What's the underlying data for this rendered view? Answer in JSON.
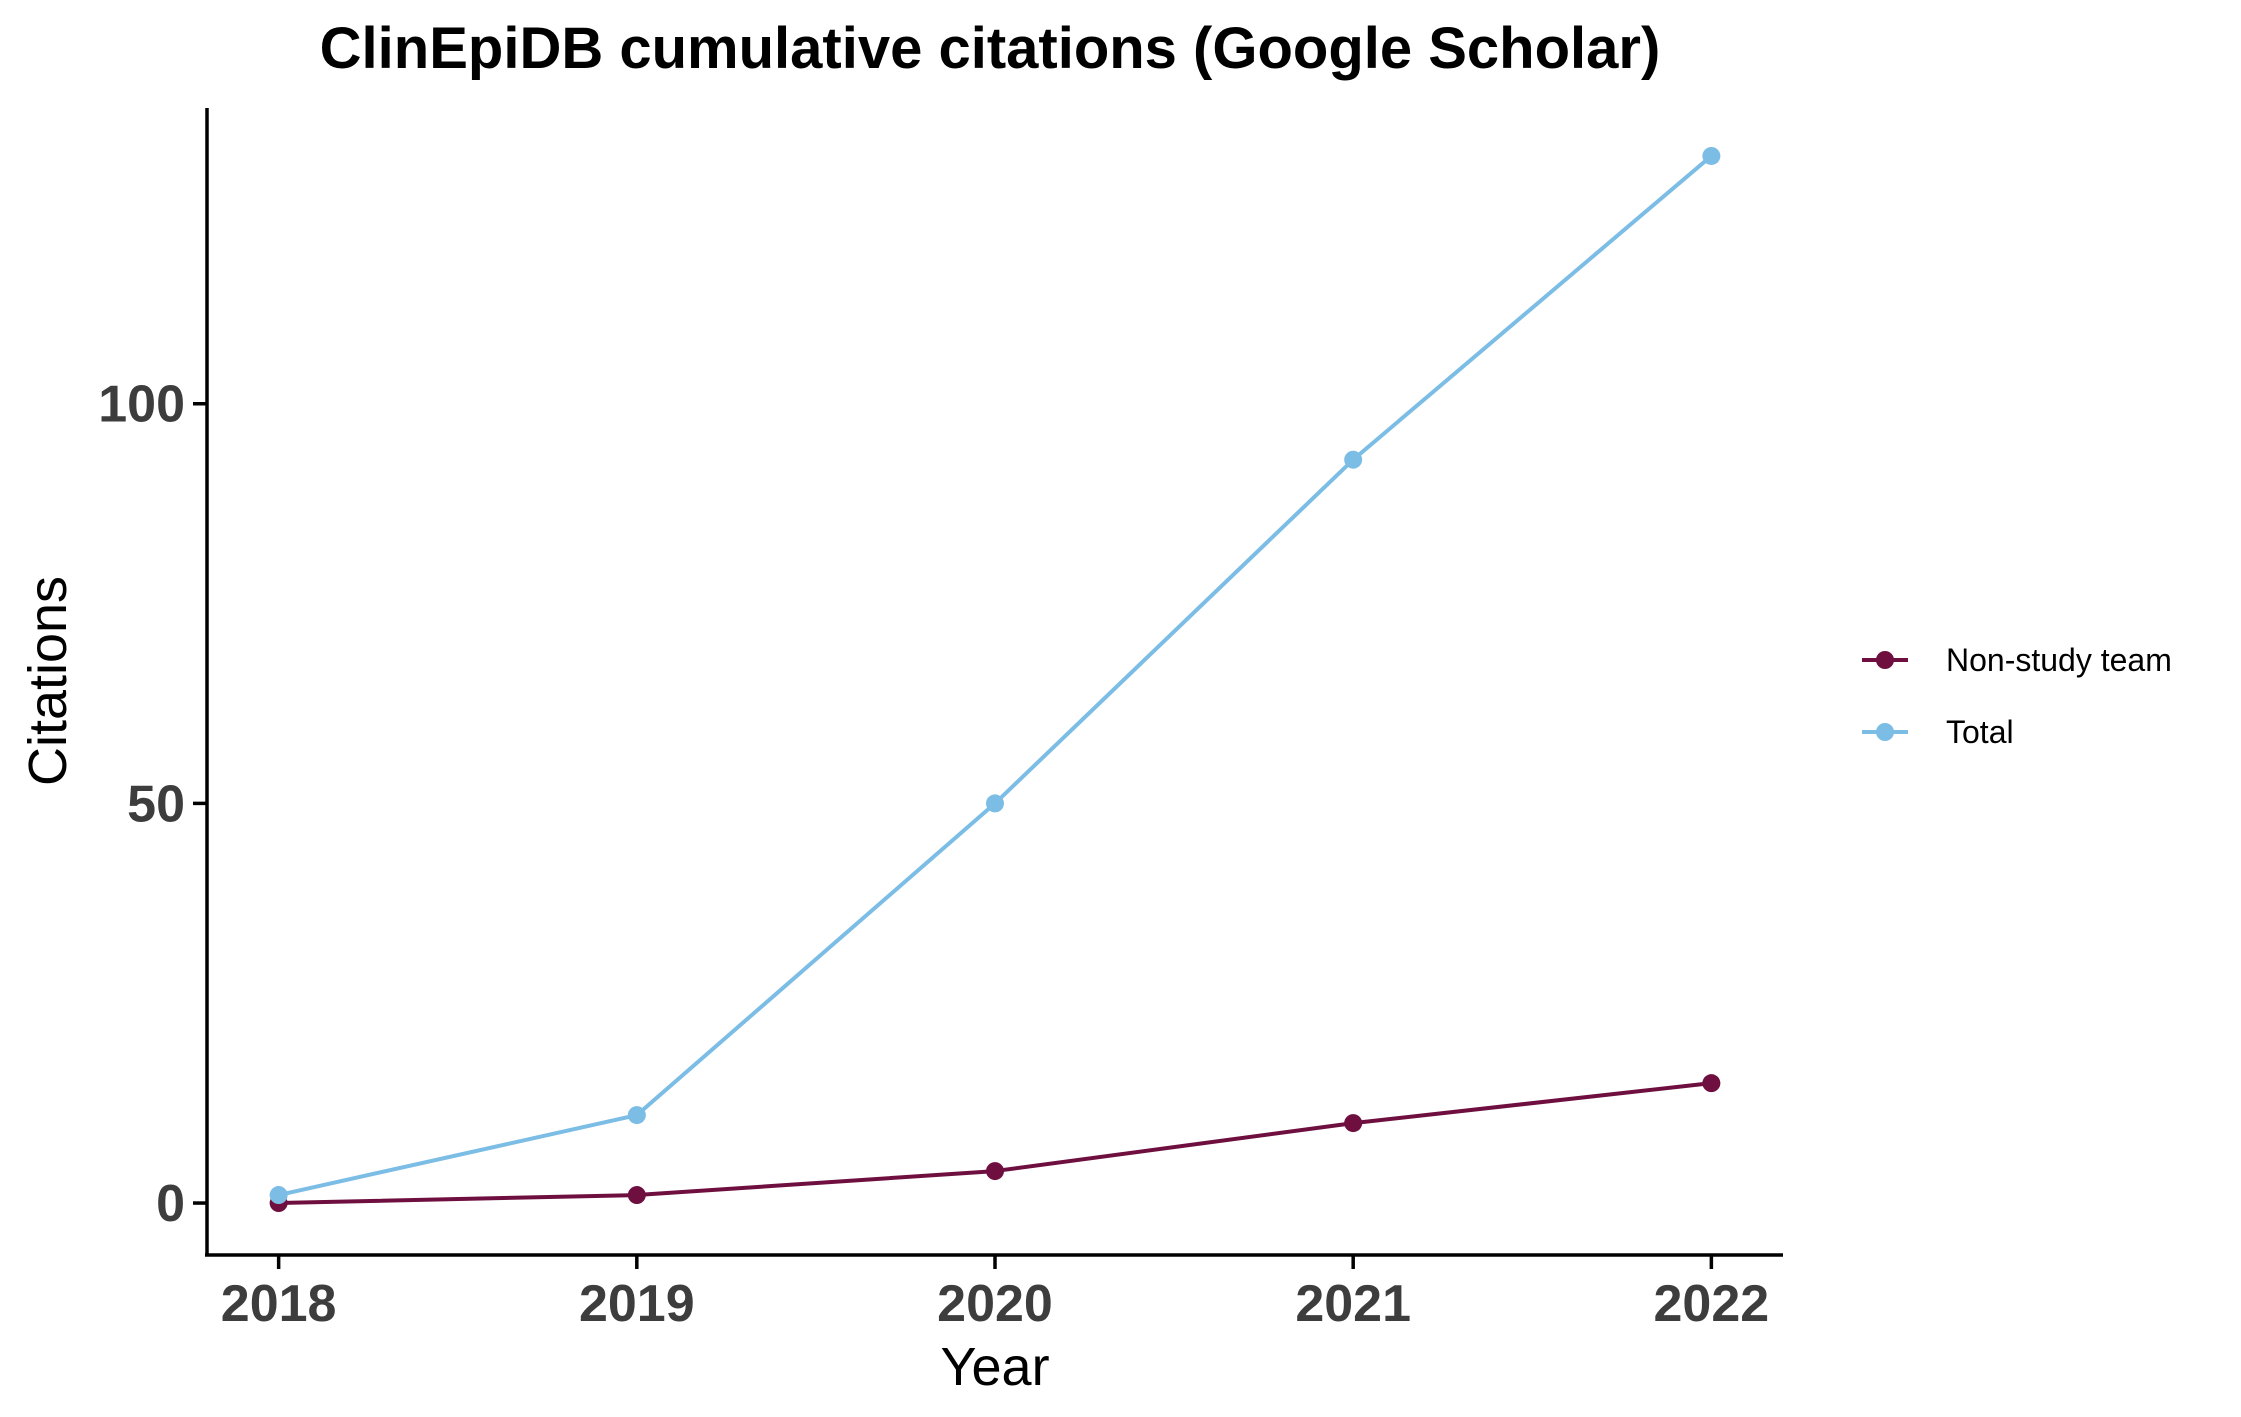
{
  "chart_data": {
    "type": "line",
    "title": "ClinEpiDB cumulative citations (Google Scholar)",
    "xlabel": "Year",
    "ylabel": "Citations",
    "x": [
      2018,
      2019,
      2020,
      2021,
      2022
    ],
    "xticks": [
      "2018",
      "2019",
      "2020",
      "2021",
      "2022"
    ],
    "yticks": [
      "0",
      "50",
      "100"
    ],
    "ylim": [
      -6.5,
      137
    ],
    "xlim": [
      2017.8,
      2022.2
    ],
    "grid": false,
    "legend_position": "right",
    "series": [
      {
        "name": "Non-study team",
        "color": "#6e0f3f",
        "values": [
          0,
          1,
          4,
          10,
          15
        ]
      },
      {
        "name": "Total",
        "color": "#7cbde6",
        "values": [
          1,
          11,
          50,
          93,
          131
        ]
      }
    ]
  }
}
